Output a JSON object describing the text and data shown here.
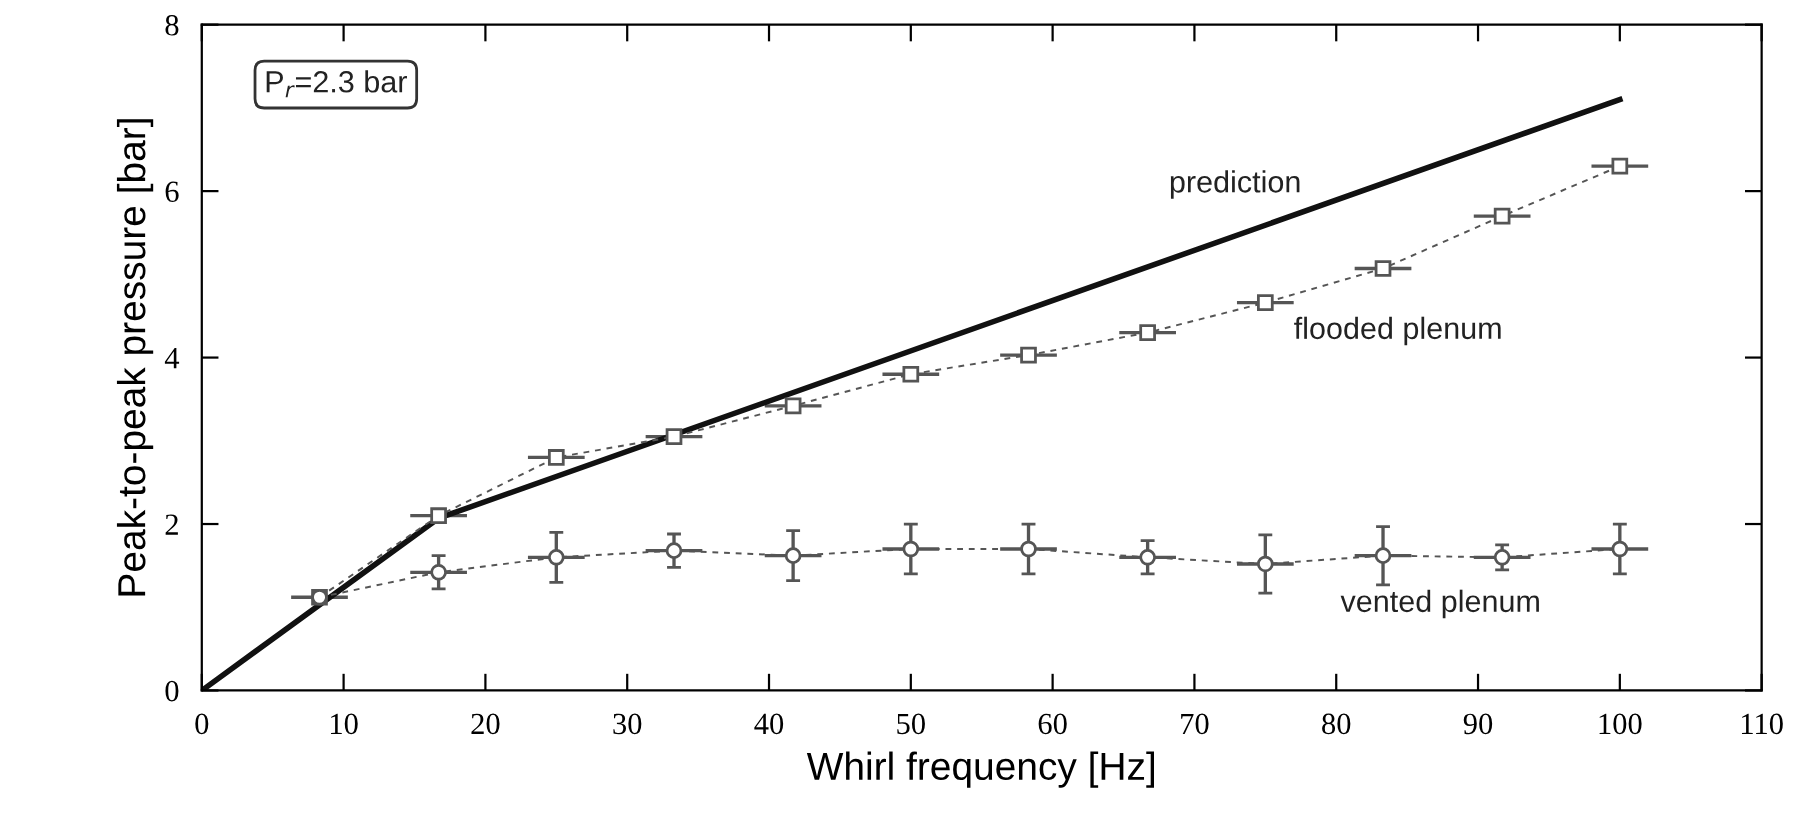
{
  "chart_data": {
    "type": "line",
    "xlabel": "Whirl frequency [Hz]",
    "ylabel": "Peak-to-peak pressure [bar]",
    "xlim": [
      0,
      110
    ],
    "xticks": [
      0,
      10,
      20,
      30,
      40,
      50,
      60,
      70,
      80,
      90,
      100,
      110
    ],
    "ylim": [
      0,
      8
    ],
    "yticks": [
      0,
      2,
      4,
      6,
      8
    ],
    "grid": false,
    "legend": false,
    "series": [
      {
        "color": "#111111",
        "marker": "none",
        "x": [
          0,
          16.7,
          100
        ],
        "values": [
          0,
          2.07,
          7.1
        ]
      },
      {
        "color": "#555555",
        "marker": "square",
        "line_style": "dashed",
        "x": [
          8.3,
          16.7,
          25,
          33.3,
          41.7,
          50,
          58.3,
          66.7,
          75,
          83.3,
          91.7,
          100
        ],
        "values": [
          1.12,
          2.1,
          2.8,
          3.05,
          3.42,
          3.8,
          4.03,
          4.3,
          4.66,
          5.07,
          5.7,
          6.3
        ],
        "xerrors": [
          2,
          2,
          2,
          2,
          2,
          2,
          2,
          2,
          2,
          2,
          2,
          2
        ]
      },
      {
        "color": "#555555",
        "marker": "circle",
        "line_style": "dashed",
        "x": [
          8.3,
          16.7,
          25,
          33.3,
          41.7,
          50,
          58.3,
          66.7,
          75,
          83.3,
          91.7,
          100
        ],
        "values": [
          1.12,
          1.42,
          1.6,
          1.68,
          1.62,
          1.7,
          1.7,
          1.6,
          1.52,
          1.62,
          1.6,
          1.7
        ],
        "errors": [
          null,
          0.2,
          0.3,
          0.2,
          0.3,
          0.3,
          0.3,
          0.2,
          0.35,
          0.35,
          0.15,
          0.3
        ],
        "xerrors": [
          null,
          2,
          2,
          2,
          2,
          2,
          2,
          2,
          2,
          2,
          2,
          2
        ]
      }
    ],
    "annotations": [
      "P$_{r}$=2.3 bar",
      "prediction",
      "flooded plenum",
      "vented plenum"
    ]
  }
}
